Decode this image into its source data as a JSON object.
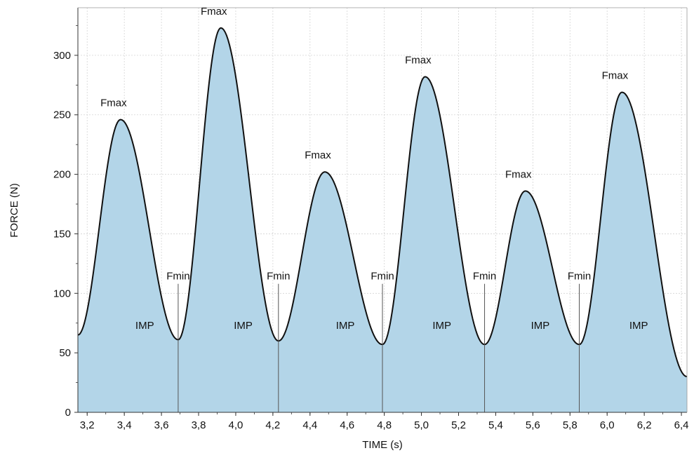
{
  "chart_data": {
    "type": "area",
    "xlabel": "TIME (s)",
    "ylabel": "FORCE (N)",
    "xlim": [
      3.15,
      6.43
    ],
    "ylim": [
      0,
      340
    ],
    "x_ticks": [
      3.2,
      3.4,
      3.6,
      3.8,
      4.0,
      4.2,
      4.4,
      4.6,
      4.8,
      5.0,
      5.2,
      5.4,
      5.6,
      5.8,
      6.0,
      6.2,
      6.4
    ],
    "x_tick_labels": [
      "3,2",
      "3,4",
      "3,6",
      "3,8",
      "4,0",
      "4,2",
      "4,4",
      "4,6",
      "4,8",
      "5,0",
      "5,2",
      "5,4",
      "5,6",
      "5,8",
      "6,0",
      "6,2",
      "6,4"
    ],
    "y_ticks": [
      0,
      50,
      100,
      150,
      200,
      250,
      300
    ],
    "y_tick_labels": [
      "0",
      "50",
      "100",
      "150",
      "200",
      "250",
      "300"
    ],
    "grid": true,
    "fill_color": "#b3d5e8",
    "line_color": "#111111",
    "series": [
      {
        "x": [
          3.15,
          3.38,
          3.69,
          3.92,
          4.23,
          4.48,
          4.79,
          5.02,
          5.34,
          5.56,
          5.85,
          6.08,
          6.43
        ],
        "values": [
          65,
          246,
          61,
          323,
          60,
          202,
          57,
          282,
          57,
          186,
          57,
          269,
          30
        ]
      }
    ],
    "peak_labels": [
      {
        "x": 3.38,
        "y": 246,
        "text": "Fmax"
      },
      {
        "x": 3.92,
        "y": 323,
        "text": "Fmax"
      },
      {
        "x": 4.48,
        "y": 202,
        "text": "Fmax"
      },
      {
        "x": 5.02,
        "y": 282,
        "text": "Fmax"
      },
      {
        "x": 5.56,
        "y": 186,
        "text": "Fmax"
      },
      {
        "x": 6.08,
        "y": 269,
        "text": "Fmax"
      }
    ],
    "min_markers": [
      {
        "x": 3.69,
        "text": "Fmin"
      },
      {
        "x": 4.23,
        "text": "Fmin"
      },
      {
        "x": 4.79,
        "text": "Fmin"
      },
      {
        "x": 5.34,
        "text": "Fmin"
      },
      {
        "x": 5.85,
        "text": "Fmin"
      }
    ],
    "marker_top": 108,
    "impulse_labels": [
      {
        "x": 3.51,
        "text": "IMP"
      },
      {
        "x": 4.04,
        "text": "IMP"
      },
      {
        "x": 4.59,
        "text": "IMP"
      },
      {
        "x": 5.11,
        "text": "IMP"
      },
      {
        "x": 5.64,
        "text": "IMP"
      },
      {
        "x": 6.17,
        "text": "IMP"
      }
    ],
    "impulse_label_y": 70
  }
}
